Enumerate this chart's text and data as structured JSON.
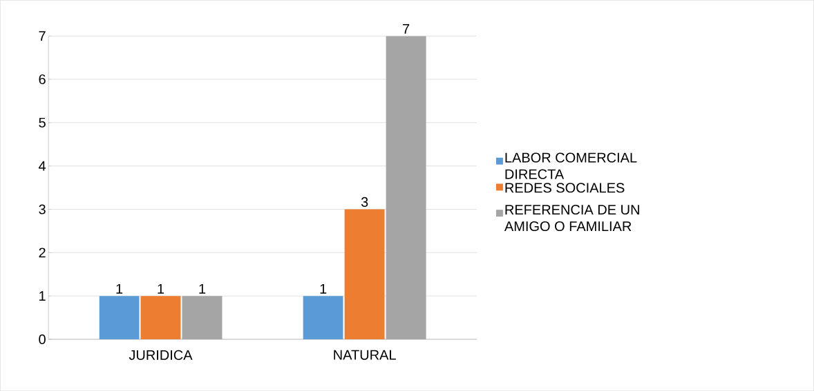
{
  "chart_data": {
    "type": "bar",
    "categories": [
      "JURIDICA",
      "NATURAL"
    ],
    "series": [
      {
        "name": "LABOR COMERCIAL DIRECTA",
        "color": "#5b9bd5",
        "values": [
          1,
          1
        ]
      },
      {
        "name": "REDES SOCIALES",
        "color": "#ed7d31",
        "values": [
          1,
          3
        ]
      },
      {
        "name": "REFERENCIA DE UN AMIGO O FAMILIAR",
        "color": "#a5a5a5",
        "values": [
          1,
          7
        ]
      }
    ],
    "ylim": [
      0,
      7
    ],
    "yticks": [
      0,
      1,
      2,
      3,
      4,
      5,
      6,
      7
    ],
    "grid": "y",
    "legend": "right",
    "data_labels": true
  }
}
